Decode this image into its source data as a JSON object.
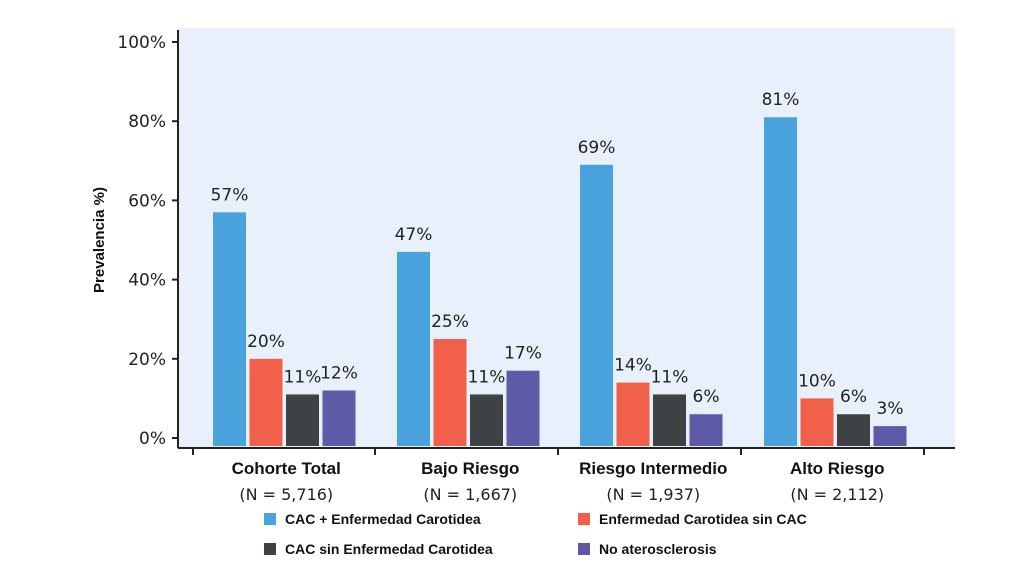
{
  "chart_data": {
    "type": "bar",
    "ylabel": "Prevalencia %)",
    "ylim": [
      0,
      100
    ],
    "yticks": [
      "0%",
      "20%",
      "40%",
      "60%",
      "80%",
      "100%"
    ],
    "ytick_values": [
      0,
      20,
      40,
      60,
      80,
      100
    ],
    "categories": [
      "Cohorte Total",
      "Bajo Riesgo",
      "Riesgo Intermedio",
      "Alto Riesgo"
    ],
    "category_n": [
      "(N = 5,716)",
      "(N = 1,667)",
      "(N = 1,937)",
      "(N = 2,112)"
    ],
    "series": [
      {
        "name": "CAC + Enfermedad Carotidea",
        "color": "#4aa3dd",
        "values": [
          57,
          47,
          69,
          81
        ],
        "labels": [
          "57%",
          "47%",
          "69%",
          "81%"
        ]
      },
      {
        "name": "Enfermedad Carotidea sin CAC",
        "color": "#f1604b",
        "values": [
          20,
          25,
          14,
          10
        ],
        "labels": [
          "20%",
          "25%",
          "14%",
          "10%"
        ]
      },
      {
        "name": "CAC sin Enfermedad Carotidea",
        "color": "#3e4245",
        "values": [
          11,
          11,
          11,
          6
        ],
        "labels": [
          "11%",
          "11%",
          "11%",
          "6%"
        ]
      },
      {
        "name": "No aterosclerosis",
        "color": "#5e5aa8",
        "values": [
          12,
          17,
          6,
          3
        ],
        "labels": [
          "12%",
          "17%",
          "6%",
          "3%"
        ]
      }
    ],
    "plot_background": "#e8f1fb",
    "grid": false,
    "legend_position": "bottom"
  }
}
